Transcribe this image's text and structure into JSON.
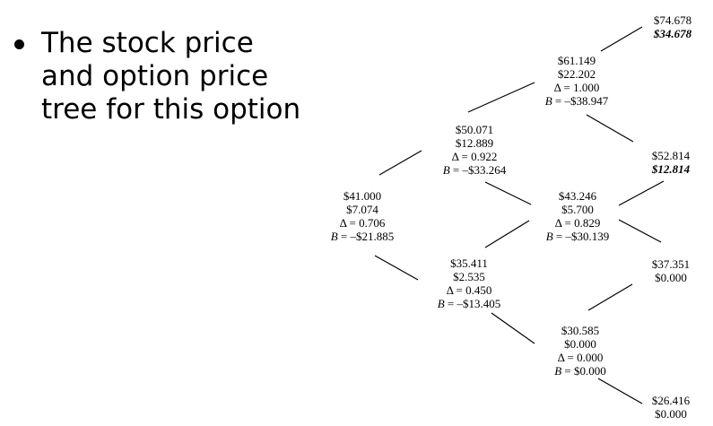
{
  "slide": {
    "bullet_lines": [
      "The stock price",
      "and option price",
      "tree for this option"
    ]
  },
  "tree": {
    "root": {
      "stock": "$41.000",
      "option": "$7.074",
      "delta": "Δ = 0.706",
      "bond_label": "B",
      "bond_value": " = –$21.885"
    },
    "u": {
      "stock": "$50.071",
      "option": "$12.889",
      "delta": "Δ = 0.922",
      "bond_label": "B",
      "bond_value": " = –$33.264"
    },
    "d": {
      "stock": "$35.411",
      "option": "$2.535",
      "delta": "Δ = 0.450",
      "bond_label": "B",
      "bond_value": " = –$13.405"
    },
    "uu": {
      "stock": "$61.149",
      "option": "$22.202",
      "delta": "Δ = 1.000",
      "bond_label": "B",
      "bond_value": " = –$38.947"
    },
    "ud": {
      "stock": "$43.246",
      "option": "$5.700",
      "delta": "Δ = 0.829",
      "bond_label": "B",
      "bond_value": " = –$30.139"
    },
    "dd": {
      "stock": "$30.585",
      "option": "$0.000",
      "delta": "Δ = 0.000",
      "bond_label": "B",
      "bond_value": " = $0.000"
    },
    "uuu": {
      "stock": "$74.678",
      "option": "$34.678"
    },
    "uud": {
      "stock": "$52.814",
      "option": "$12.814"
    },
    "udd": {
      "stock": "$37.351",
      "option": "$0.000"
    },
    "ddd": {
      "stock": "$26.416",
      "option": "$0.000"
    }
  }
}
